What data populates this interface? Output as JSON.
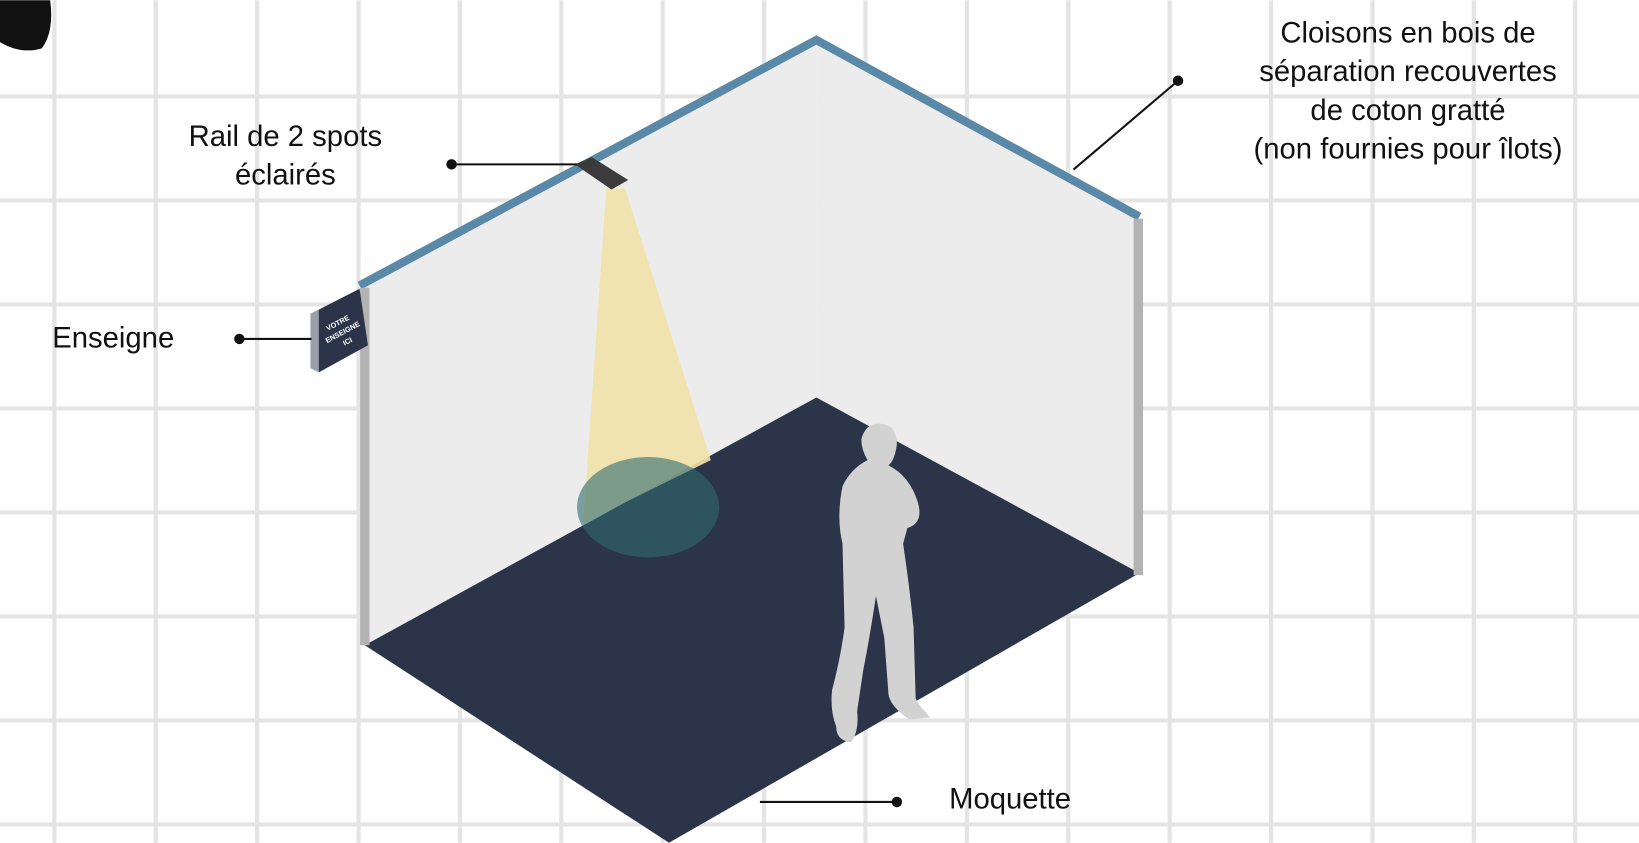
{
  "labels": {
    "rail": [
      "Rail de 2 spots",
      "éclairés"
    ],
    "sign": [
      "Enseigne"
    ],
    "walls": [
      "Cloisons en bois de",
      "séparation recouvertes",
      "de coton gratté",
      "(non fournies pour îlots)"
    ],
    "carpet": [
      "Moquette"
    ]
  },
  "sign_text": [
    "VOTRE",
    "ENSEIGNE",
    "ICI"
  ]
}
